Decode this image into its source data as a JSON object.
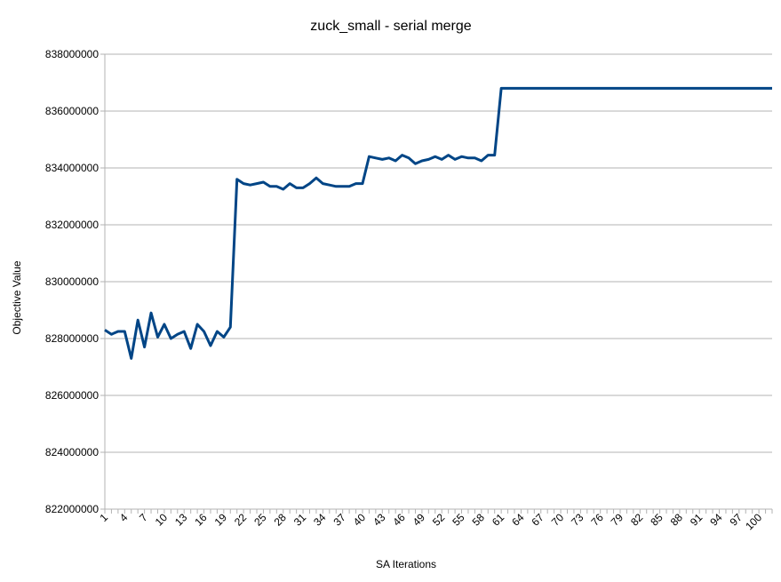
{
  "chart_data": {
    "type": "line",
    "title": "zuck_small - serial merge",
    "xlabel": "SA Iterations",
    "ylabel": "Objective Value",
    "ylim": [
      822000000,
      838000000
    ],
    "yticks": [
      "822000000",
      "824000000",
      "826000000",
      "828000000",
      "830000000",
      "832000000",
      "834000000",
      "836000000",
      "838000000"
    ],
    "xticks": [
      "1",
      "4",
      "7",
      "10",
      "13",
      "16",
      "19",
      "22",
      "25",
      "28",
      "31",
      "34",
      "37",
      "40",
      "43",
      "46",
      "49",
      "52",
      "55",
      "58",
      "61",
      "64",
      "67",
      "70",
      "73",
      "76",
      "79",
      "82",
      "85",
      "88",
      "91",
      "94",
      "97",
      "100"
    ],
    "grid": "horizontal",
    "line_color": "#004586",
    "series": [
      {
        "x": [
          1,
          2,
          3,
          4,
          5,
          6,
          7,
          8,
          9,
          10,
          11,
          12,
          13,
          14,
          15,
          16,
          17,
          18,
          19,
          20,
          21,
          22,
          23,
          24,
          25,
          26,
          27,
          28,
          29,
          30,
          31,
          32,
          33,
          34,
          35,
          36,
          37,
          38,
          39,
          40,
          41,
          42,
          43,
          44,
          45,
          46,
          47,
          48,
          49,
          50,
          51,
          52,
          53,
          54,
          55,
          56,
          57,
          58,
          59,
          60,
          61,
          62,
          63,
          64,
          65,
          66,
          67,
          68,
          69,
          70,
          71,
          72,
          73,
          74,
          75,
          76,
          77,
          78,
          79,
          80,
          81,
          82,
          83,
          84,
          85,
          86,
          87,
          88,
          89,
          90,
          91,
          92,
          93,
          94,
          95,
          96,
          97,
          98,
          99,
          100,
          101,
          102
        ],
        "values": [
          828300000,
          828150000,
          828250000,
          828250000,
          827300000,
          828650000,
          827700000,
          828900000,
          828050000,
          828500000,
          828000000,
          828150000,
          828250000,
          827650000,
          828500000,
          828250000,
          827750000,
          828250000,
          828050000,
          828400000,
          833600000,
          833450000,
          833400000,
          833450000,
          833500000,
          833350000,
          833350000,
          833250000,
          833450000,
          833300000,
          833300000,
          833450000,
          833650000,
          833450000,
          833400000,
          833350000,
          833350000,
          833350000,
          833450000,
          833450000,
          834400000,
          834350000,
          834300000,
          834350000,
          834250000,
          834450000,
          834350000,
          834150000,
          834250000,
          834300000,
          834400000,
          834300000,
          834450000,
          834300000,
          834400000,
          834350000,
          834350000,
          834250000,
          834450000,
          834450000,
          836800000,
          836800000,
          836800000,
          836800000,
          836800000,
          836800000,
          836800000,
          836800000,
          836800000,
          836800000,
          836800000,
          836800000,
          836800000,
          836800000,
          836800000,
          836800000,
          836800000,
          836800000,
          836800000,
          836800000,
          836800000,
          836800000,
          836800000,
          836800000,
          836800000,
          836800000,
          836800000,
          836800000,
          836800000,
          836800000,
          836800000,
          836800000,
          836800000,
          836800000,
          836800000,
          836800000,
          836800000,
          836800000,
          836800000,
          836800000,
          836800000,
          836800000
        ]
      }
    ]
  }
}
